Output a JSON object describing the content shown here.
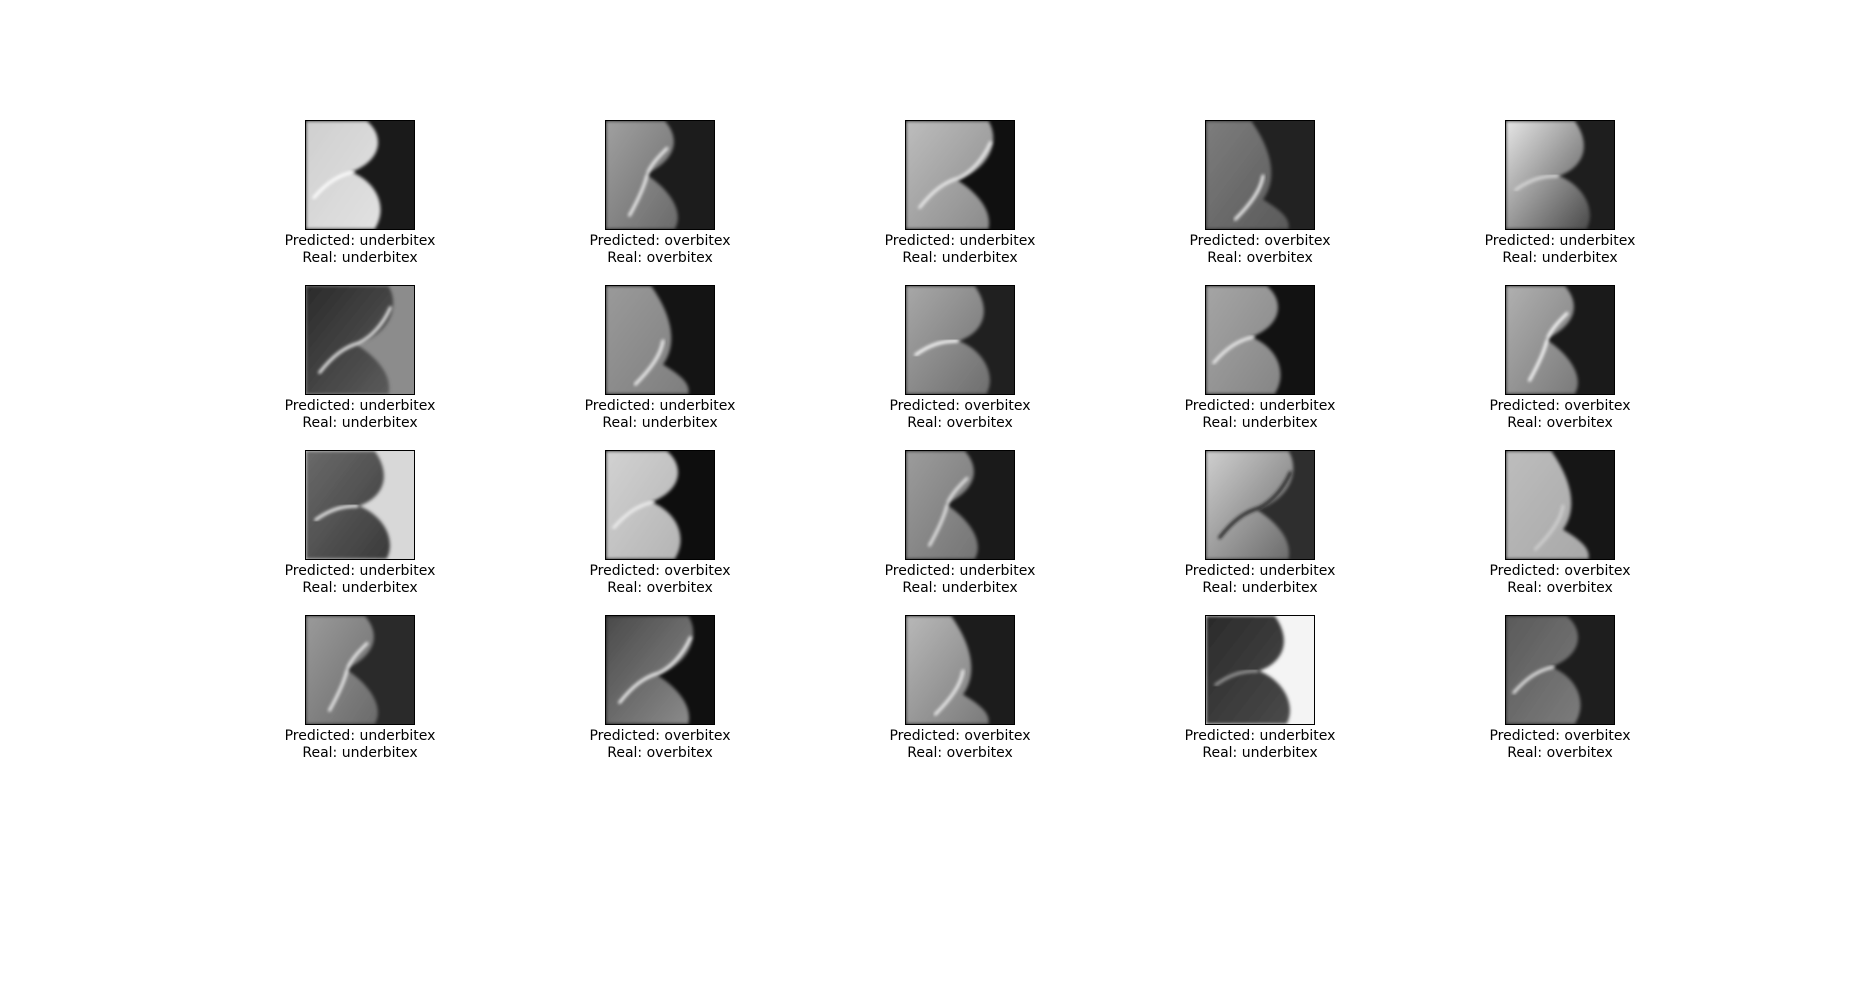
{
  "caption_labels": {
    "predicted": "Predicted: ",
    "real": "Real: "
  },
  "samples": [
    {
      "predicted": "underbitex",
      "real": "underbitex",
      "image": {
        "bg": "#1a1a1a",
        "face": "#e2e2e2",
        "line": "#ffffff",
        "accent": "#cfcfcf"
      }
    },
    {
      "predicted": "overbitex",
      "real": "overbitex",
      "image": {
        "bg": "#1c1c1c",
        "face": "#6a6a6a",
        "line": "#f2f2f2",
        "accent": "#a0a0a0"
      }
    },
    {
      "predicted": "underbitex",
      "real": "underbitex",
      "image": {
        "bg": "#101010",
        "face": "#8a8a8a",
        "line": "#efefef",
        "accent": "#bdbdbd"
      }
    },
    {
      "predicted": "overbitex",
      "real": "overbitex",
      "image": {
        "bg": "#222222",
        "face": "#5a5a5a",
        "line": "#f5f5f5",
        "accent": "#7d7d7d"
      }
    },
    {
      "predicted": "underbitex",
      "real": "underbitex",
      "image": {
        "bg": "#1e1e1e",
        "face": "#4a4a4a",
        "line": "#d8d8d8",
        "accent": "#e6e6e6"
      }
    },
    {
      "predicted": "underbitex",
      "real": "underbitex",
      "image": {
        "bg": "#8c8c8c",
        "face": "#5c5c5c",
        "line": "#f0f0f0",
        "accent": "#2a2a2a"
      }
    },
    {
      "predicted": "underbitex",
      "real": "underbitex",
      "image": {
        "bg": "#141414",
        "face": "#7e7e7e",
        "line": "#f4f4f4",
        "accent": "#9a9a9a"
      }
    },
    {
      "predicted": "overbitex",
      "real": "overbitex",
      "image": {
        "bg": "#202020",
        "face": "#6e6e6e",
        "line": "#ffffff",
        "accent": "#a8a8a8"
      }
    },
    {
      "predicted": "underbitex",
      "real": "underbitex",
      "image": {
        "bg": "#121212",
        "face": "#858585",
        "line": "#f0f0f0",
        "accent": "#a5a5a5"
      }
    },
    {
      "predicted": "overbitex",
      "real": "overbitex",
      "image": {
        "bg": "#1a1a1a",
        "face": "#7a7a7a",
        "line": "#ffffff",
        "accent": "#b0b0b0"
      }
    },
    {
      "predicted": "underbitex",
      "real": "underbitex",
      "image": {
        "bg": "#d8d8d8",
        "face": "#3a3a3a",
        "line": "#f2f2f2",
        "accent": "#6a6a6a"
      }
    },
    {
      "predicted": "overbitex",
      "real": "overbitex",
      "image": {
        "bg": "#0e0e0e",
        "face": "#b4b4b4",
        "line": "#f0f0f0",
        "accent": "#d2d2d2"
      }
    },
    {
      "predicted": "underbitex",
      "real": "underbitex",
      "image": {
        "bg": "#1a1a1a",
        "face": "#747474",
        "line": "#e8e8e8",
        "accent": "#9c9c9c"
      }
    },
    {
      "predicted": "underbitex",
      "real": "underbitex",
      "image": {
        "bg": "#2e2e2e",
        "face": "#6a6a6a",
        "line": "#1a1a1a",
        "accent": "#cfcfcf"
      }
    },
    {
      "predicted": "overbitex",
      "real": "overbitex",
      "image": {
        "bg": "#161616",
        "face": "#a8a8a8",
        "line": "#d0d0d0",
        "accent": "#bdbdbd"
      }
    },
    {
      "predicted": "underbitex",
      "real": "underbitex",
      "image": {
        "bg": "#2a2a2a",
        "face": "#6a6a6a",
        "line": "#f0f0f0",
        "accent": "#9a9a9a"
      }
    },
    {
      "predicted": "overbitex",
      "real": "overbitex",
      "image": {
        "bg": "#101010",
        "face": "#8c8c8c",
        "line": "#f6f6f6",
        "accent": "#4a4a4a"
      }
    },
    {
      "predicted": "overbitex",
      "real": "overbitex",
      "image": {
        "bg": "#1c1c1c",
        "face": "#7a7a7a",
        "line": "#f0f0f0",
        "accent": "#b8b8b8"
      }
    },
    {
      "predicted": "underbitex",
      "real": "underbitex",
      "image": {
        "bg": "#f4f4f4",
        "face": "#4a4a4a",
        "line": "#9a9a9a",
        "accent": "#2a2a2a"
      }
    },
    {
      "predicted": "overbitex",
      "real": "overbitex",
      "image": {
        "bg": "#1e1e1e",
        "face": "#7c7c7c",
        "line": "#e8e8e8",
        "accent": "#5a5a5a"
      }
    }
  ]
}
